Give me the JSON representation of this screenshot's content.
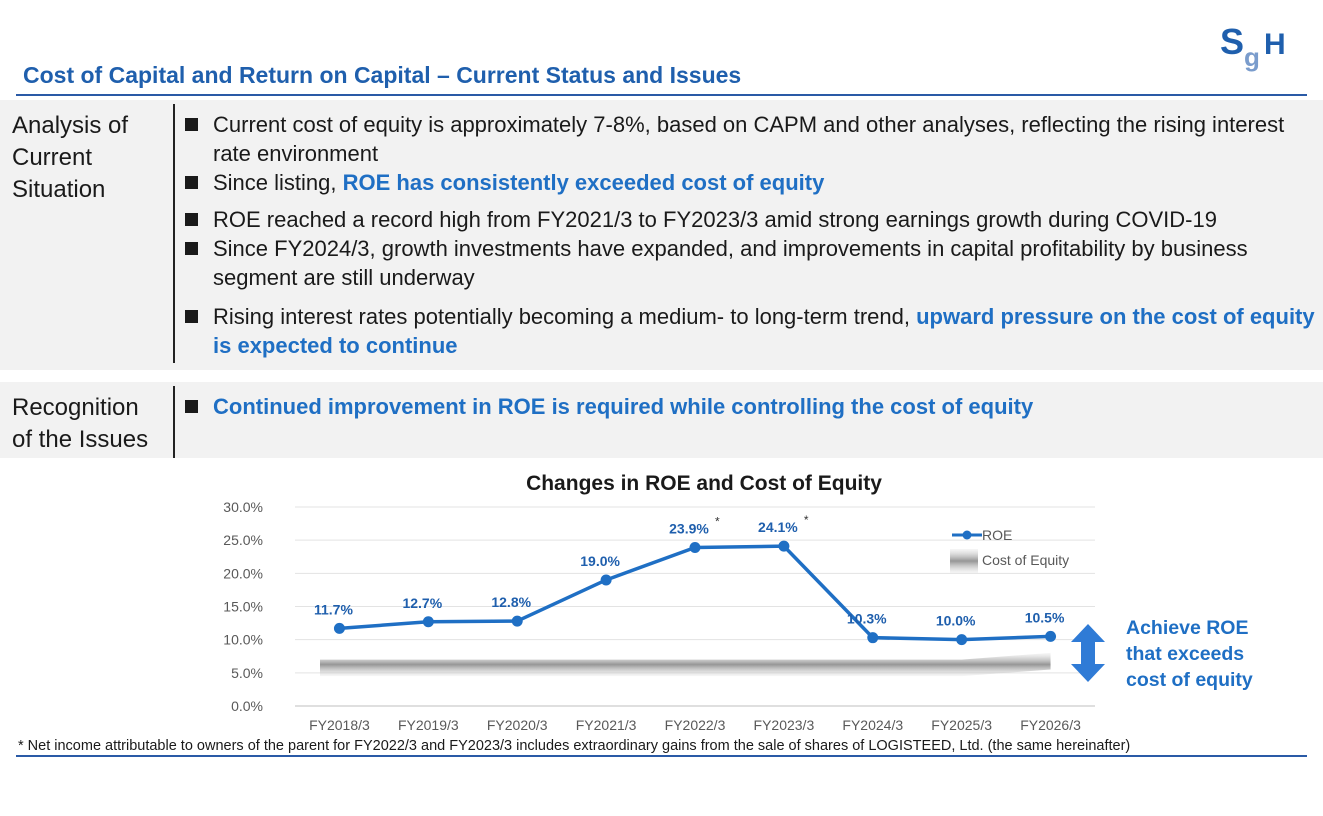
{
  "header": {
    "title": "Cost of Capital and Return on Capital – Current Status and Issues",
    "logo_text": "SGH"
  },
  "analysis": {
    "label_lines": [
      "Analysis of",
      "Current",
      "Situation"
    ],
    "bullets": [
      {
        "before": "Current cost of equity is approximately 7-8%, based on CAPM and other analyses, reflecting the rising interest rate environment",
        "highlight": "",
        "after": ""
      },
      {
        "before": "Since listing, ",
        "highlight": "ROE has consistently exceeded cost of equity",
        "after": ""
      },
      {
        "before": "ROE reached a record high from FY2021/3 to FY2023/3 amid strong earnings growth during COVID-19",
        "highlight": "",
        "after": ""
      },
      {
        "before": "Since FY2024/3, growth investments have expanded, and improvements in capital profitability by business segment are still underway",
        "highlight": "",
        "after": ""
      },
      {
        "before": "Rising interest rates potentially becoming a medium- to long-term trend, ",
        "highlight": "upward pressure on the cost of equity is expected to continue",
        "after": ""
      }
    ]
  },
  "issues": {
    "label_lines": [
      "Recognition",
      "of the Issues"
    ],
    "bullet": "Continued improvement in ROE is required while controlling the cost of equity"
  },
  "chart_data": {
    "type": "line",
    "title": "Changes in ROE and Cost of Equity",
    "categories": [
      "FY2018/3",
      "FY2019/3",
      "FY2020/3",
      "FY2021/3",
      "FY2022/3",
      "FY2023/3",
      "FY2024/3",
      "FY2025/3",
      "FY2026/3"
    ],
    "series": [
      {
        "name": "ROE",
        "values": [
          11.7,
          12.7,
          12.8,
          19.0,
          23.9,
          24.1,
          10.3,
          10.0,
          10.5
        ],
        "labels": [
          "11.7%",
          "12.7%",
          "12.8%",
          "19.0%",
          "23.9%",
          "24.1%",
          "10.3%",
          "10.0%",
          "10.5%"
        ],
        "asterisk": [
          false,
          false,
          false,
          false,
          true,
          true,
          false,
          false,
          false
        ]
      }
    ],
    "cost_of_equity": {
      "name": "Cost of  Equity",
      "band": [
        [
          4.5,
          7.0
        ],
        [
          4.5,
          7.0
        ],
        [
          4.5,
          7.0
        ],
        [
          4.5,
          7.0
        ],
        [
          4.5,
          7.0
        ],
        [
          4.5,
          7.0
        ],
        [
          4.5,
          7.0
        ],
        [
          4.5,
          7.0
        ],
        [
          5.5,
          8.0
        ]
      ]
    },
    "ylim": [
      0,
      30
    ],
    "yticks": [
      "0.0%",
      "5.0%",
      "10.0%",
      "15.0%",
      "20.0%",
      "25.0%",
      "30.0%"
    ],
    "grid": true,
    "legend": "top-right",
    "colors": {
      "roe": "#1f6fc4",
      "label": "#1f5fad"
    }
  },
  "annotation": {
    "achieve_lines": [
      "Achieve ROE",
      "that exceeds",
      "cost of equity"
    ]
  },
  "footnote": "* Net income attributable to owners of the parent for FY2022/3 and FY2023/3 includes extraordinary gains from the sale of shares of LOGISTEED, Ltd. (the same hereinafter)"
}
